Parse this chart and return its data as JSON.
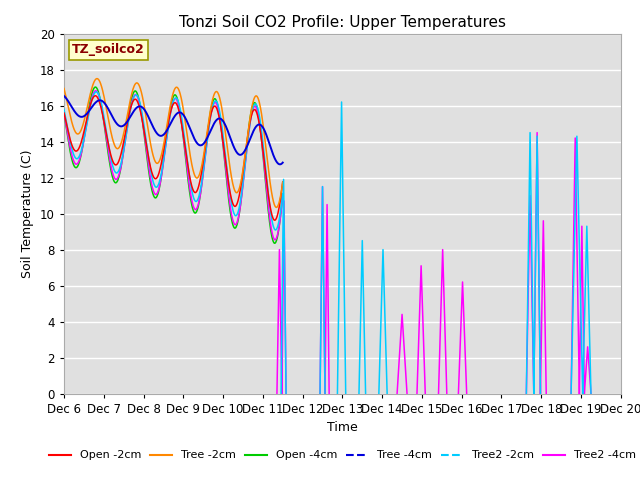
{
  "title": "Tonzi Soil CO2 Profile: Upper Temperatures",
  "ylabel": "Soil Temperature (C)",
  "xlabel": "Time",
  "annotation": "TZ_soilco2",
  "ylim": [
    0,
    20
  ],
  "xlim": [
    0,
    336
  ],
  "xtick_positions": [
    0,
    24,
    48,
    72,
    96,
    120,
    144,
    168,
    192,
    216,
    240,
    264,
    288,
    312,
    336
  ],
  "xtick_labels": [
    "Dec 6",
    "Dec 7",
    "Dec 8",
    "Dec 9",
    "Dec 10",
    "Dec 11",
    "Dec 12",
    "Dec 13",
    "Dec 14",
    "Dec 15",
    "Dec 16",
    "Dec 17",
    "Dec 18",
    "Dec 19",
    "Dec 20"
  ],
  "ytick_positions": [
    0,
    2,
    4,
    6,
    8,
    10,
    12,
    14,
    16,
    18,
    20
  ],
  "colors": {
    "open_2cm": "#ff0000",
    "tree_2cm": "#ff8800",
    "open_4cm": "#00cc00",
    "tree_4cm": "#0000dd",
    "tree2_2cm": "#00ccff",
    "tree2_4cm": "#ff00ff"
  },
  "labels": {
    "open_2cm": "Open -2cm",
    "tree_2cm": "Tree -2cm",
    "open_4cm": "Open -4cm",
    "tree_4cm": "Tree -4cm",
    "tree2_2cm": "Tree2 -2cm",
    "tree2_4cm": "Tree2 -4cm"
  },
  "plot_bg": "#e0e0e0",
  "fig_bg": "#ffffff",
  "grid_color": "#ffffff",
  "title_fontsize": 11,
  "axis_label_fontsize": 9,
  "tick_fontsize": 8.5,
  "legend_fontsize": 8
}
